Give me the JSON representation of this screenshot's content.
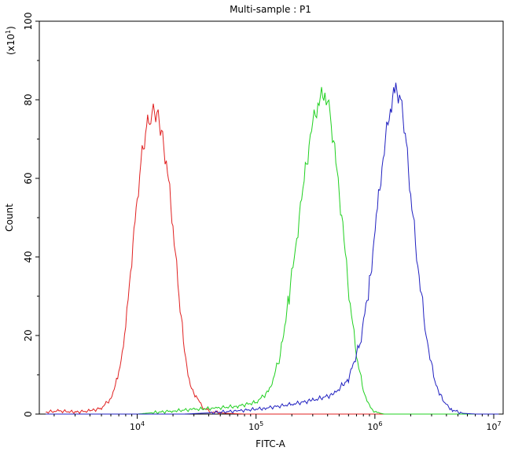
{
  "chart_data": {
    "type": "line",
    "title": "Multi-sample : P1",
    "xlabel": "FITC-A",
    "ylabel": "Count",
    "y_multiplier_label": "(x10",
    "y_multiplier_exp": "1",
    "y_multiplier_close": ")",
    "x_scale": "log",
    "xlim": [
      1500,
      12000000
    ],
    "ylim": [
      0,
      100
    ],
    "x_ticks": [
      {
        "value": 10000,
        "base": "10",
        "exp": "4"
      },
      {
        "value": 100000,
        "base": "10",
        "exp": "5"
      },
      {
        "value": 1000000,
        "base": "10",
        "exp": "6"
      },
      {
        "value": 10000000,
        "base": "10",
        "exp": "7"
      }
    ],
    "y_ticks": [
      0,
      20,
      40,
      60,
      80,
      100
    ],
    "grid": false,
    "series": [
      {
        "color": "#e02020",
        "points": [
          [
            1700,
            0.5
          ],
          [
            2200,
            0.8
          ],
          [
            3000,
            0.5
          ],
          [
            4000,
            0.8
          ],
          [
            5000,
            1.5
          ],
          [
            6000,
            4
          ],
          [
            7000,
            10
          ],
          [
            8000,
            22
          ],
          [
            9000,
            40
          ],
          [
            10000,
            55
          ],
          [
            11000,
            66
          ],
          [
            12000,
            73
          ],
          [
            13000,
            76
          ],
          [
            14000,
            77
          ],
          [
            15000,
            76
          ],
          [
            16000,
            72
          ],
          [
            18000,
            62
          ],
          [
            20000,
            48
          ],
          [
            22000,
            33
          ],
          [
            25000,
            16
          ],
          [
            28000,
            7
          ],
          [
            32000,
            4
          ],
          [
            36000,
            1.5
          ],
          [
            42000,
            0.6
          ],
          [
            55000,
            0.2
          ],
          [
            80000,
            0
          ],
          [
            1000000,
            0
          ],
          [
            11000000,
            0
          ]
        ]
      },
      {
        "color": "#20d020",
        "points": [
          [
            1700,
            0
          ],
          [
            10000,
            0
          ],
          [
            13000,
            0.3
          ],
          [
            20000,
            0.8
          ],
          [
            30000,
            1.2
          ],
          [
            45000,
            1.5
          ],
          [
            70000,
            2
          ],
          [
            100000,
            3
          ],
          [
            130000,
            6
          ],
          [
            160000,
            15
          ],
          [
            190000,
            30
          ],
          [
            220000,
            45
          ],
          [
            260000,
            62
          ],
          [
            300000,
            74
          ],
          [
            340000,
            80
          ],
          [
            380000,
            82
          ],
          [
            420000,
            76
          ],
          [
            480000,
            62
          ],
          [
            550000,
            44
          ],
          [
            620000,
            28
          ],
          [
            700000,
            15
          ],
          [
            800000,
            6
          ],
          [
            900000,
            2
          ],
          [
            1000000,
            0.5
          ],
          [
            1200000,
            0
          ],
          [
            11000000,
            0
          ]
        ]
      },
      {
        "color": "#2020c0",
        "points": [
          [
            1700,
            0
          ],
          [
            25000,
            0
          ],
          [
            40000,
            0.3
          ],
          [
            70000,
            0.8
          ],
          [
            120000,
            1.5
          ],
          [
            200000,
            2.5
          ],
          [
            300000,
            3.5
          ],
          [
            450000,
            5
          ],
          [
            600000,
            9
          ],
          [
            750000,
            18
          ],
          [
            900000,
            33
          ],
          [
            1050000,
            52
          ],
          [
            1200000,
            68
          ],
          [
            1350000,
            78
          ],
          [
            1500000,
            83
          ],
          [
            1650000,
            80
          ],
          [
            1800000,
            72
          ],
          [
            2000000,
            56
          ],
          [
            2300000,
            38
          ],
          [
            2700000,
            20
          ],
          [
            3200000,
            8
          ],
          [
            3800000,
            3
          ],
          [
            4500000,
            1
          ],
          [
            5500000,
            0.2
          ],
          [
            7000000,
            0
          ],
          [
            11000000,
            0
          ]
        ]
      }
    ]
  }
}
